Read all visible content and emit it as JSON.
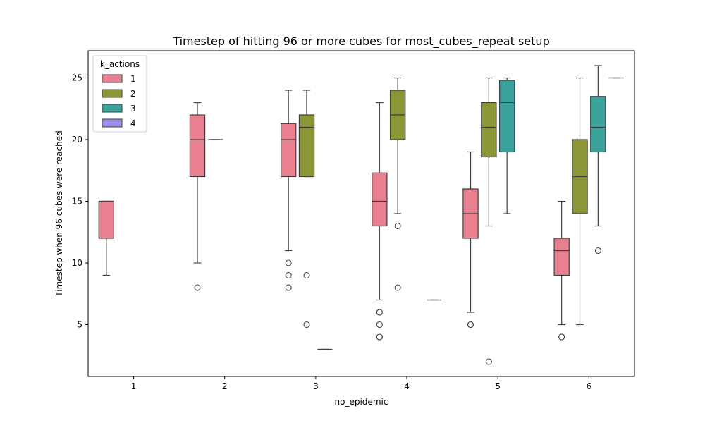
{
  "chart_data": {
    "type": "box",
    "title": "Timestep of hitting 96 or more cubes for most_cubes_repeat setup",
    "xlabel": "no_epidemic",
    "ylabel": "Timestep when 96 cubes were reached",
    "categories": [
      "1",
      "2",
      "3",
      "4",
      "5",
      "6"
    ],
    "ylim": [
      0.8,
      27.2
    ],
    "yticks": [
      5,
      10,
      15,
      20,
      25
    ],
    "legend": {
      "title": "k_actions",
      "position": "top-left",
      "entries": [
        "1",
        "2",
        "3",
        "4"
      ]
    },
    "colors": [
      "#e8808f",
      "#8c9636",
      "#3ba39b",
      "#a08ee8"
    ],
    "series": [
      {
        "name": "1",
        "boxes": [
          {
            "category": "1",
            "whislo": 9,
            "q1": 12,
            "med": 15,
            "q3": 15,
            "whishi": 15,
            "fliers": []
          },
          {
            "category": "2",
            "whislo": 10,
            "q1": 17,
            "med": 20,
            "q3": 22,
            "whishi": 23,
            "fliers": [
              8
            ]
          },
          {
            "category": "3",
            "whislo": 11,
            "q1": 17,
            "med": 20,
            "q3": 21.3,
            "whishi": 24,
            "fliers": [
              10,
              9,
              8
            ]
          },
          {
            "category": "4",
            "whislo": 7,
            "q1": 13,
            "med": 15,
            "q3": 17.3,
            "whishi": 23,
            "fliers": [
              6,
              6,
              5,
              4,
              4
            ]
          },
          {
            "category": "5",
            "whislo": 6,
            "q1": 12,
            "med": 14,
            "q3": 16,
            "whishi": 19,
            "fliers": [
              5,
              5
            ]
          },
          {
            "category": "6",
            "whislo": 5,
            "q1": 9,
            "med": 11,
            "q3": 12,
            "whishi": 15,
            "fliers": [
              4,
              4
            ]
          }
        ]
      },
      {
        "name": "2",
        "boxes": [
          {
            "category": "2",
            "whislo": 20,
            "q1": 20,
            "med": 20,
            "q3": 20,
            "whishi": 20,
            "fliers": []
          },
          {
            "category": "3",
            "whislo": 17,
            "q1": 17,
            "med": 21,
            "q3": 22,
            "whishi": 24,
            "fliers": [
              9,
              5
            ]
          },
          {
            "category": "4",
            "whislo": 14,
            "q1": 20,
            "med": 22,
            "q3": 24,
            "whishi": 25,
            "fliers": [
              13,
              8
            ]
          },
          {
            "category": "5",
            "whislo": 13,
            "q1": 18.6,
            "med": 21,
            "q3": 23,
            "whishi": 25,
            "fliers": [
              2
            ]
          },
          {
            "category": "6",
            "whislo": 5,
            "q1": 14,
            "med": 17,
            "q3": 20,
            "whishi": 25,
            "fliers": []
          }
        ]
      },
      {
        "name": "3",
        "boxes": [
          {
            "category": "3",
            "whislo": 3,
            "q1": 3,
            "med": 3,
            "q3": 3,
            "whishi": 3,
            "fliers": []
          },
          {
            "category": "5",
            "whislo": 14,
            "q1": 19,
            "med": 23,
            "q3": 24.8,
            "whishi": 25,
            "fliers": []
          },
          {
            "category": "6",
            "whislo": 13,
            "q1": 19,
            "med": 21,
            "q3": 23.5,
            "whishi": 26,
            "fliers": [
              11
            ]
          }
        ]
      },
      {
        "name": "4",
        "boxes": [
          {
            "category": "4",
            "whislo": 7,
            "q1": 7,
            "med": 7,
            "q3": 7,
            "whishi": 7,
            "fliers": []
          },
          {
            "category": "6",
            "whislo": 25,
            "q1": 25,
            "med": 25,
            "q3": 25,
            "whishi": 25,
            "fliers": []
          }
        ]
      }
    ]
  }
}
